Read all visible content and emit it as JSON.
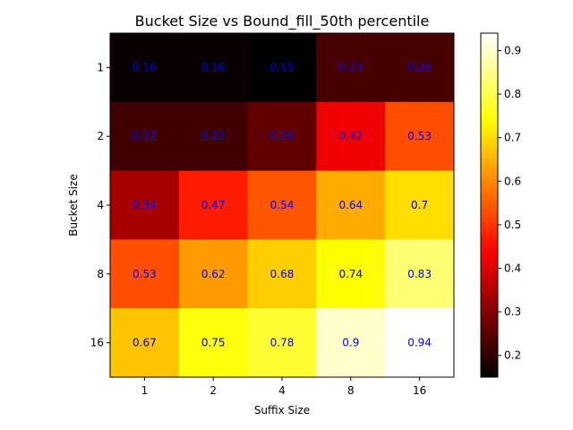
{
  "chart_data": {
    "type": "heatmap",
    "title": "Bucket Size vs Bound_fill_50th percentile",
    "xlabel": "Suffix Size",
    "ylabel": "Bucket Size",
    "x_categories": [
      "1",
      "2",
      "4",
      "8",
      "16"
    ],
    "y_categories": [
      "1",
      "2",
      "4",
      "8",
      "16"
    ],
    "values": [
      [
        0.16,
        0.16,
        0.15,
        0.23,
        0.23
      ],
      [
        0.22,
        0.22,
        0.26,
        0.42,
        0.53
      ],
      [
        0.34,
        0.47,
        0.54,
        0.64,
        0.7
      ],
      [
        0.53,
        0.62,
        0.68,
        0.74,
        0.83
      ],
      [
        0.67,
        0.75,
        0.78,
        0.9,
        0.94
      ]
    ],
    "colormap": "hot",
    "vmin": 0.15,
    "vmax": 0.94,
    "cell_label_color": "#0000ff",
    "colorbar": {
      "ticks": [
        "0.2",
        "0.3",
        "0.4",
        "0.5",
        "0.6",
        "0.7",
        "0.8",
        "0.9"
      ]
    },
    "grid": false
  }
}
